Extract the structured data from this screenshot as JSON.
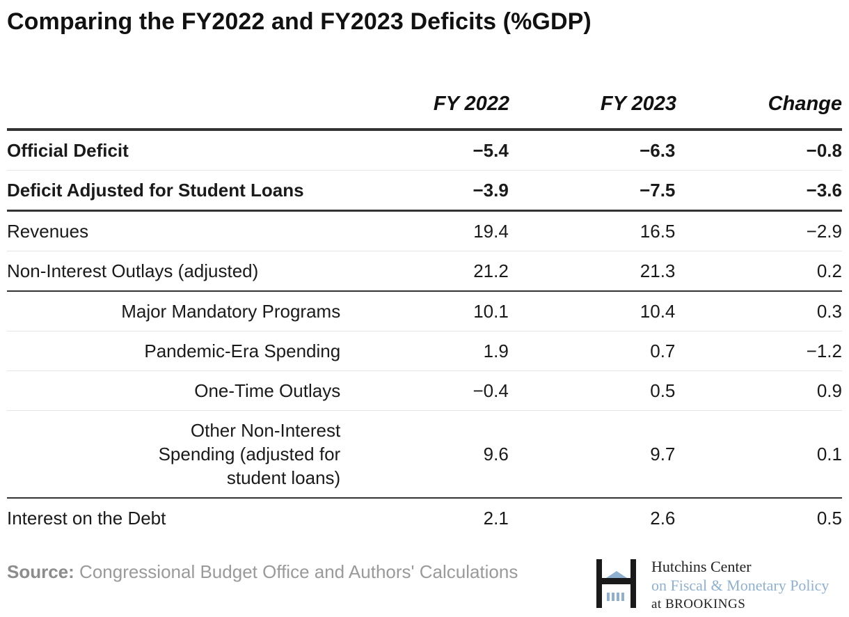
{
  "title": "Comparing the FY2022 and FY2023 Deficits (%GDP)",
  "chart_data": {
    "type": "table",
    "columns": [
      "FY 2022",
      "FY 2023",
      "Change"
    ],
    "rows": [
      {
        "label": "Official Deficit",
        "fy2022": "−5.4",
        "fy2023": "−6.3",
        "change": "−0.8"
      },
      {
        "label": "Deficit Adjusted for Student Loans",
        "fy2022": "−3.9",
        "fy2023": "−7.5",
        "change": "−3.6"
      },
      {
        "label": "Revenues",
        "fy2022": "19.4",
        "fy2023": "16.5",
        "change": "−2.9"
      },
      {
        "label": "Non-Interest Outlays (adjusted)",
        "fy2022": "21.2",
        "fy2023": "21.3",
        "change": "0.2"
      },
      {
        "label": "Major Mandatory Programs",
        "fy2022": "10.1",
        "fy2023": "10.4",
        "change": "0.3"
      },
      {
        "label": "Pandemic-Era Spending",
        "fy2022": "1.9",
        "fy2023": "0.7",
        "change": "−1.2"
      },
      {
        "label": "One-Time Outlays",
        "fy2022": "−0.4",
        "fy2023": "0.5",
        "change": "0.9"
      },
      {
        "label_lines": [
          "Other Non-Interest",
          "Spending (adjusted for",
          "student loans)"
        ],
        "fy2022": "9.6",
        "fy2023": "9.7",
        "change": "0.1"
      },
      {
        "label": "Interest on the Debt",
        "fy2022": "2.1",
        "fy2023": "2.6",
        "change": "0.5"
      }
    ]
  },
  "source": {
    "prefix": "Source:",
    "text": " Congressional Budget Office and Authors' Calculations"
  },
  "logo": {
    "line1": "Hutchins Center",
    "line2": "on Fiscal & Monetary Policy",
    "line3": "at BROOKINGS",
    "colors": {
      "dark": "#1a1a1a",
      "blue": "#8fb0cf"
    }
  }
}
